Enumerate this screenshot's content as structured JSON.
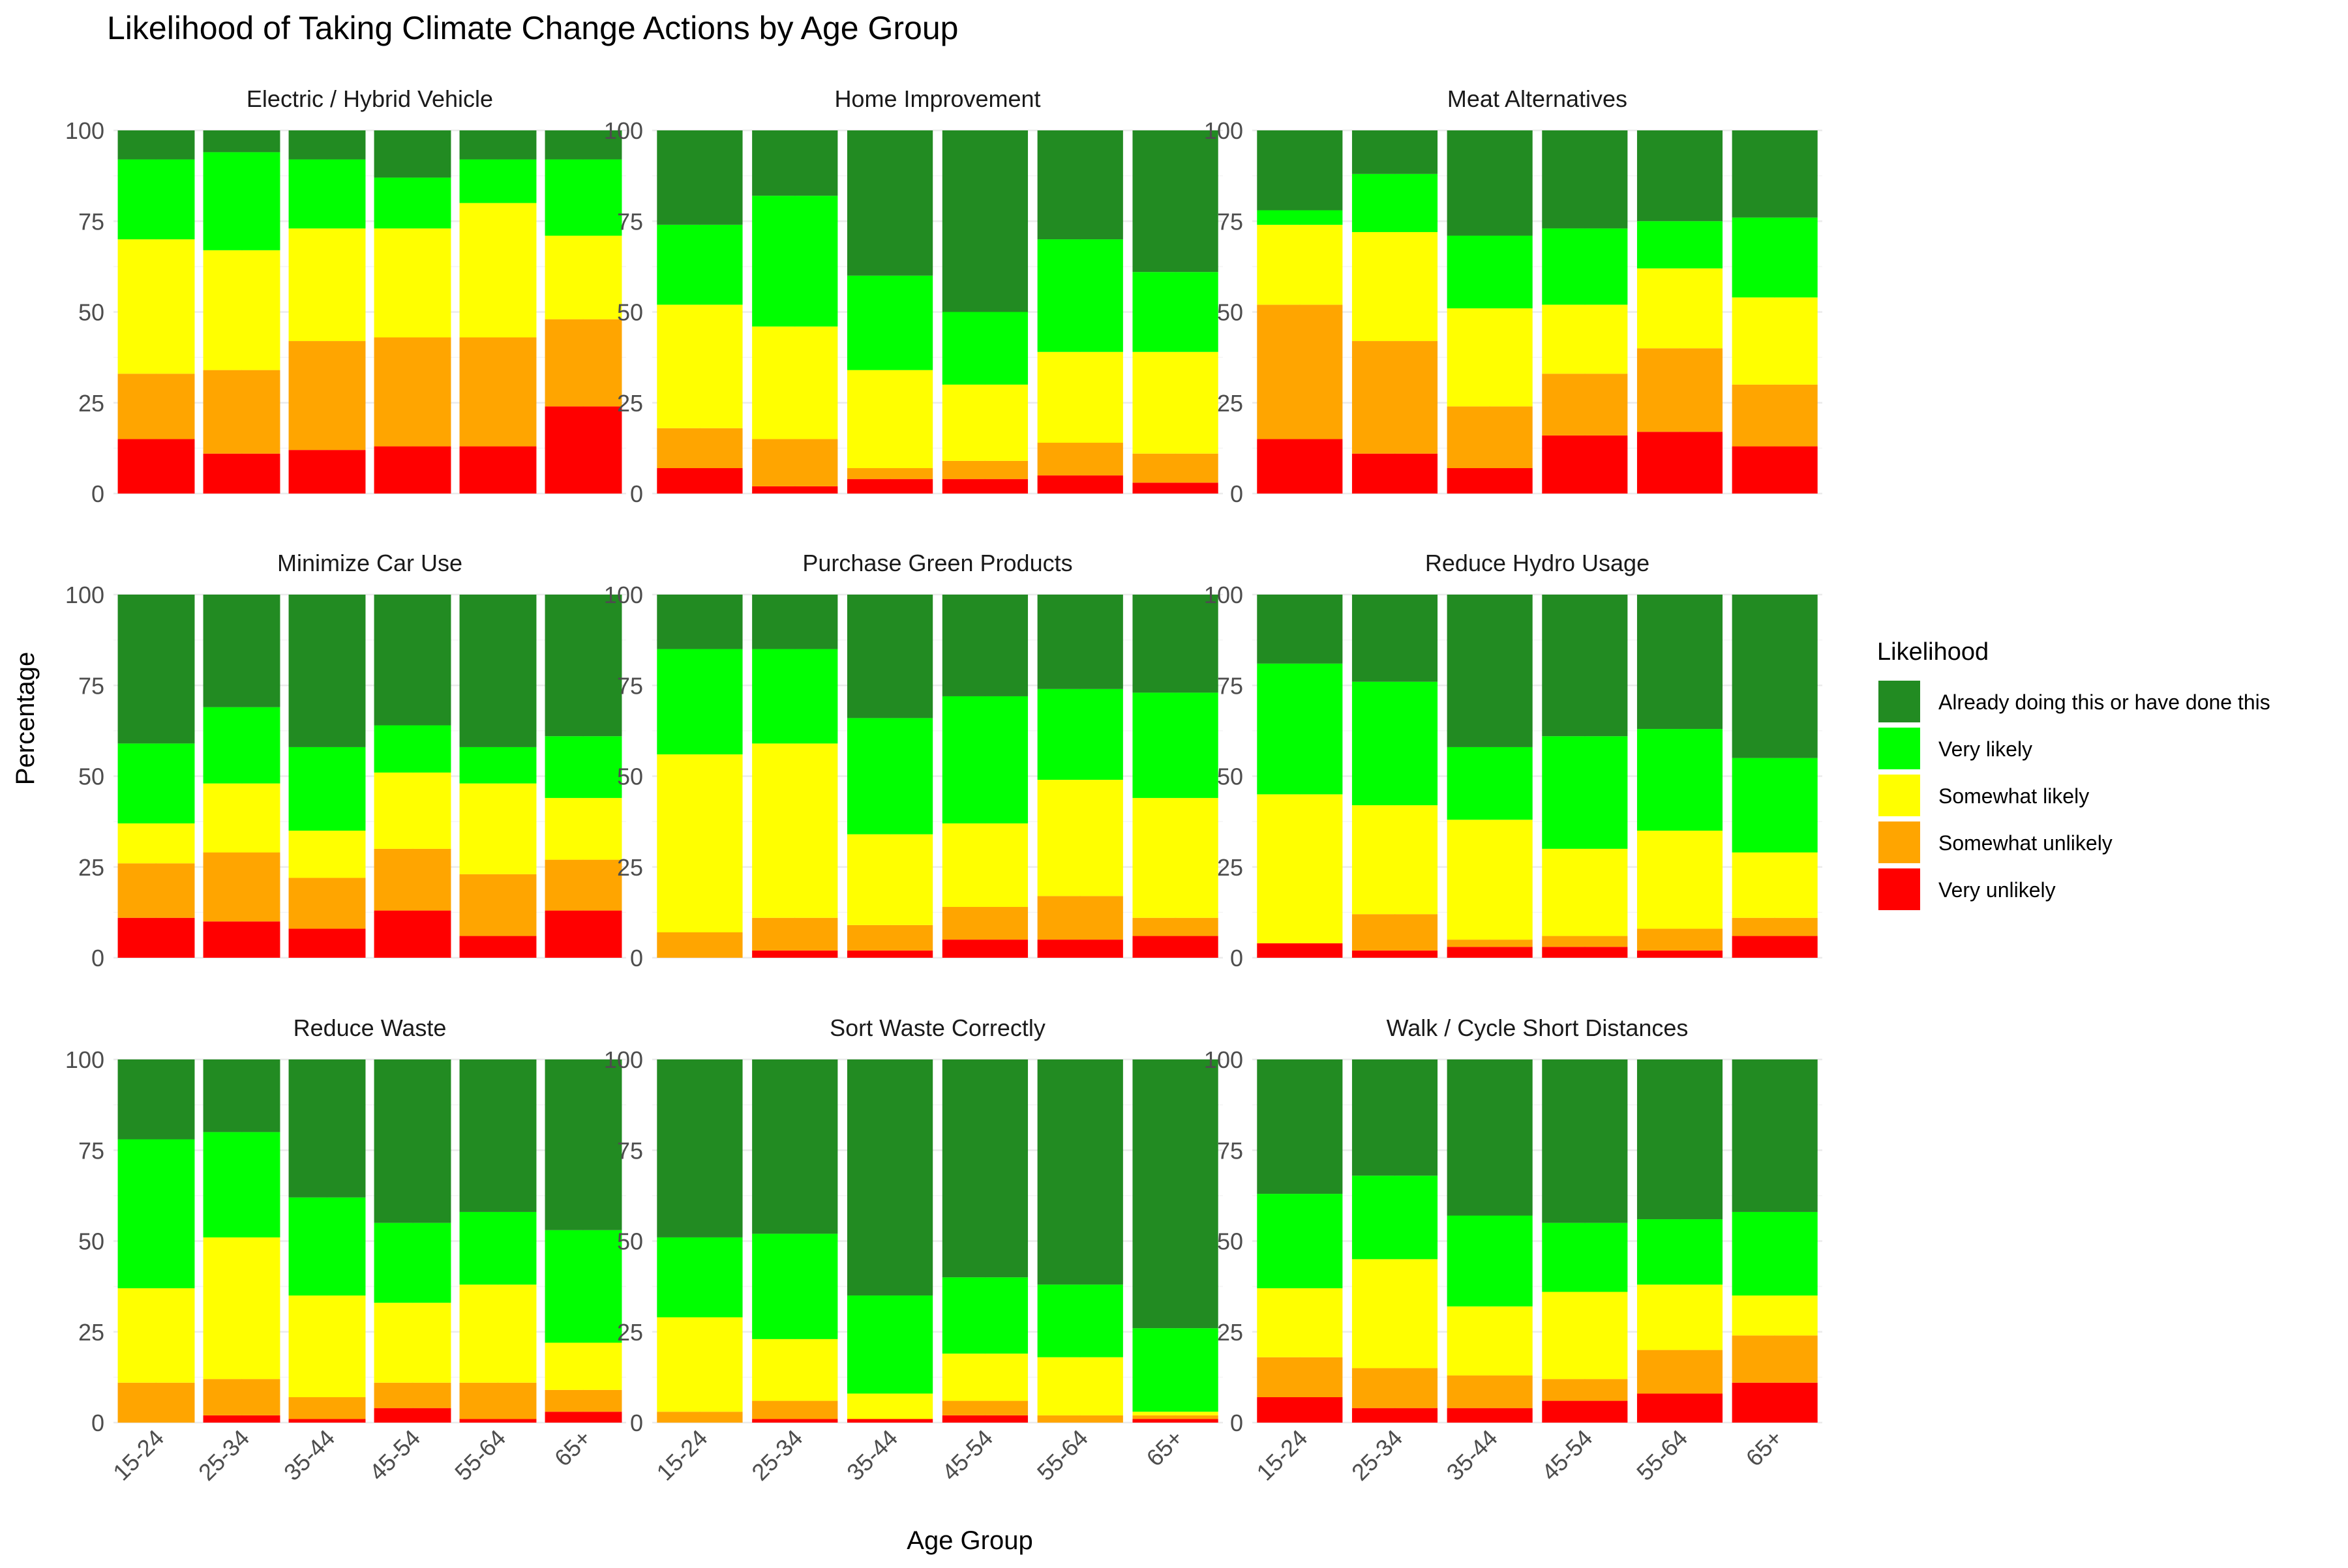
{
  "chart_data": {
    "type": "bar",
    "stacked": true,
    "faceted": true,
    "title": "Likelihood of Taking Climate Change Actions by Age Group",
    "xlabel": "Age Group",
    "ylabel": "Percentage",
    "ylim": [
      0,
      100
    ],
    "yticks": [
      0,
      25,
      50,
      75,
      100
    ],
    "grid": true,
    "legend": {
      "title": "Likelihood",
      "position": "right"
    },
    "categories": [
      "15-24",
      "25-34",
      "35-44",
      "45-54",
      "55-64",
      "65+"
    ],
    "levels": [
      {
        "name": "Very unlikely",
        "color": "#FF0000"
      },
      {
        "name": "Somewhat unlikely",
        "color": "#FFA500"
      },
      {
        "name": "Somewhat likely",
        "color": "#FFFF00"
      },
      {
        "name": "Very likely",
        "color": "#00FF00"
      },
      {
        "name": "Already doing this or have done this",
        "color": "#228B22"
      }
    ],
    "panels": [
      {
        "title": "Electric / Hybrid Vehicle",
        "values": [
          [
            15,
            18,
            37,
            22,
            8
          ],
          [
            11,
            23,
            33,
            27,
            6
          ],
          [
            12,
            30,
            31,
            19,
            8
          ],
          [
            13,
            30,
            30,
            14,
            13
          ],
          [
            13,
            30,
            37,
            12,
            8
          ],
          [
            24,
            24,
            23,
            21,
            8
          ]
        ]
      },
      {
        "title": "Home Improvement",
        "values": [
          [
            7,
            11,
            34,
            22,
            26
          ],
          [
            2,
            13,
            31,
            36,
            18
          ],
          [
            4,
            3,
            27,
            26,
            40
          ],
          [
            4,
            5,
            21,
            20,
            50
          ],
          [
            5,
            9,
            25,
            31,
            30
          ],
          [
            3,
            8,
            28,
            22,
            39
          ]
        ]
      },
      {
        "title": "Meat Alternatives",
        "values": [
          [
            15,
            37,
            22,
            4,
            22
          ],
          [
            11,
            31,
            30,
            16,
            12
          ],
          [
            7,
            17,
            27,
            20,
            29
          ],
          [
            16,
            17,
            19,
            21,
            27
          ],
          [
            17,
            23,
            22,
            13,
            25
          ],
          [
            13,
            17,
            24,
            22,
            24
          ]
        ]
      },
      {
        "title": "Minimize Car Use",
        "values": [
          [
            11,
            15,
            11,
            22,
            41
          ],
          [
            10,
            19,
            19,
            21,
            31
          ],
          [
            8,
            14,
            13,
            23,
            42
          ],
          [
            13,
            17,
            21,
            13,
            36
          ],
          [
            6,
            17,
            25,
            10,
            42
          ],
          [
            13,
            14,
            17,
            17,
            39
          ]
        ]
      },
      {
        "title": "Purchase Green Products",
        "values": [
          [
            0,
            7,
            49,
            29,
            15
          ],
          [
            2,
            9,
            48,
            26,
            15
          ],
          [
            2,
            7,
            25,
            32,
            34
          ],
          [
            5,
            9,
            23,
            35,
            28
          ],
          [
            5,
            12,
            32,
            25,
            26
          ],
          [
            6,
            5,
            33,
            29,
            27
          ]
        ]
      },
      {
        "title": "Reduce Hydro Usage",
        "values": [
          [
            4,
            0,
            41,
            36,
            19
          ],
          [
            2,
            10,
            30,
            34,
            24
          ],
          [
            3,
            2,
            33,
            20,
            42
          ],
          [
            3,
            3,
            24,
            31,
            39
          ],
          [
            2,
            6,
            27,
            28,
            37
          ],
          [
            6,
            5,
            18,
            26,
            45
          ]
        ]
      },
      {
        "title": "Reduce Waste",
        "values": [
          [
            0,
            11,
            26,
            41,
            22
          ],
          [
            2,
            10,
            39,
            29,
            20
          ],
          [
            1,
            6,
            28,
            27,
            38
          ],
          [
            4,
            7,
            22,
            22,
            45
          ],
          [
            1,
            10,
            27,
            20,
            42
          ],
          [
            3,
            6,
            13,
            31,
            47
          ]
        ]
      },
      {
        "title": "Sort Waste Correctly",
        "values": [
          [
            0,
            3,
            26,
            22,
            49
          ],
          [
            1,
            5,
            17,
            29,
            48
          ],
          [
            1,
            0,
            7,
            27,
            65
          ],
          [
            2,
            4,
            13,
            21,
            60
          ],
          [
            0,
            2,
            16,
            20,
            62
          ],
          [
            1,
            1,
            1,
            23,
            74
          ]
        ]
      },
      {
        "title": "Walk / Cycle Short Distances",
        "values": [
          [
            7,
            11,
            19,
            26,
            37
          ],
          [
            4,
            11,
            30,
            23,
            32
          ],
          [
            4,
            9,
            19,
            25,
            43
          ],
          [
            6,
            6,
            24,
            19,
            45
          ],
          [
            8,
            12,
            18,
            18,
            44
          ],
          [
            11,
            13,
            11,
            23,
            42
          ]
        ]
      }
    ]
  }
}
